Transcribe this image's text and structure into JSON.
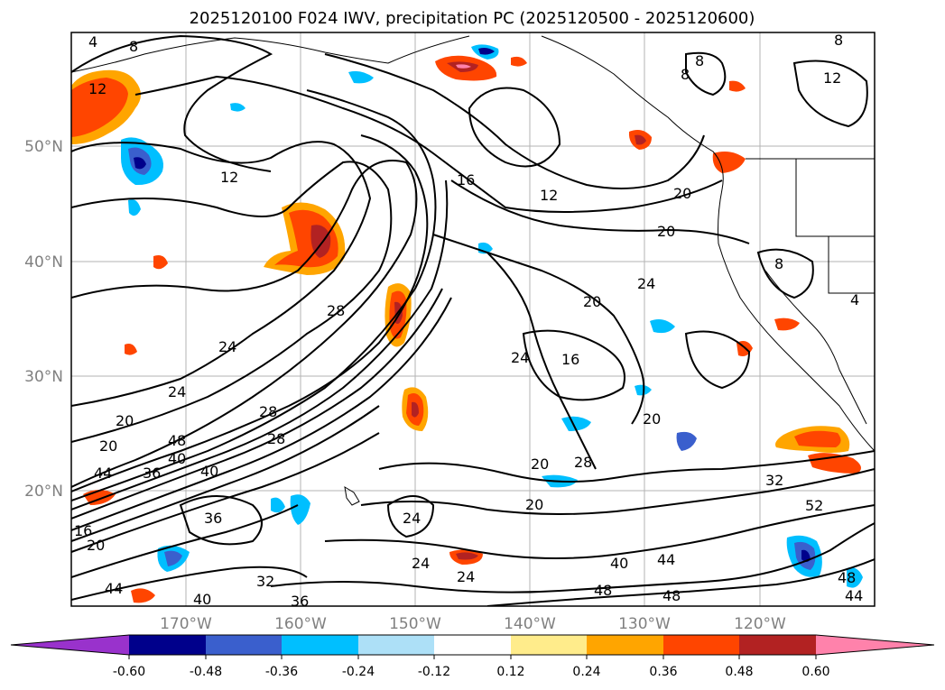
{
  "title": "2025120100 F024 IWV, precipitation PC (2025120500 - 2025120600)",
  "axes": {
    "lon_ticks": [
      "170°W",
      "160°W",
      "150°W",
      "140°W",
      "130°W",
      "120°W"
    ],
    "lat_ticks": [
      "50°N",
      "40°N",
      "30°N",
      "20°N"
    ]
  },
  "contour_labels": [
    "4",
    "8",
    "12",
    "8",
    "8",
    "8",
    "12",
    "12",
    "16",
    "12",
    "20",
    "20",
    "8",
    "24",
    "20",
    "4",
    "28",
    "24",
    "24",
    "24",
    "16",
    "20",
    "28",
    "28",
    "20",
    "20",
    "28",
    "20",
    "48",
    "40",
    "36",
    "44",
    "40",
    "24",
    "20",
    "24",
    "24",
    "36",
    "32",
    "36",
    "40",
    "48",
    "40",
    "48",
    "44",
    "32",
    "52",
    "48",
    "44",
    "44",
    "16",
    "20"
  ],
  "colorbar": {
    "ticks": [
      "-0.60",
      "-0.48",
      "-0.36",
      "-0.24",
      "-0.12",
      "0.12",
      "0.24",
      "0.36",
      "0.48",
      "0.60"
    ],
    "colors": [
      "#9932CC",
      "#00008B",
      "#3A5FCD",
      "#00BFFF",
      "#ADE0F7",
      "#FFFFFF",
      "#FFEC8B",
      "#FFA500",
      "#FF4500",
      "#B22222",
      "#FF82AB"
    ]
  },
  "precip_colors": {
    "neg_light": "#00BFFF",
    "neg_mid": "#3A5FCD",
    "neg_dark": "#00008B",
    "pos_light": "#FFA500",
    "pos_mid": "#FF4500",
    "pos_dark": "#B22222",
    "pos_max": "#FF82AB"
  }
}
